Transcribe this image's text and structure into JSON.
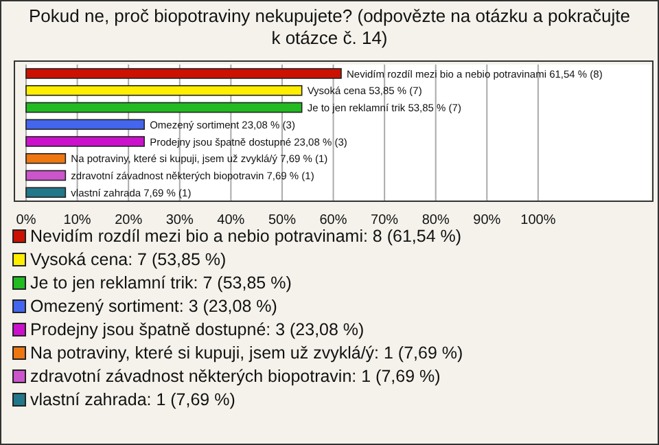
{
  "chart_data": {
    "type": "bar",
    "orientation": "horizontal",
    "stacked": true,
    "title": "Pokud ne, proč biopotraviny nekupujete? (odpovězte na otázku a pokračujte k otázce č. 14)",
    "categories": [
      null,
      null,
      null,
      null,
      null,
      null,
      null,
      null
    ],
    "series": [
      {
        "name": "Nevidím rozdíl mezi bio a nebio potravinami: 8 (61,54 %)",
        "color": "#cc1100",
        "values": [
          61.54,
          null,
          null,
          null,
          null,
          null,
          null,
          null
        ],
        "value_labels": [
          "Nevidím rozdíl mezi bio a nebio potravinami 61,54 % (8)",
          null,
          null,
          null,
          null,
          null,
          null,
          null
        ]
      },
      {
        "name": "Vysoká cena: 7 (53,85 %)",
        "color": "#ffee00",
        "values": [
          null,
          53.85,
          null,
          null,
          null,
          null,
          null,
          null
        ],
        "value_labels": [
          null,
          "Vysoká cena 53,85 % (7)",
          null,
          null,
          null,
          null,
          null,
          null
        ]
      },
      {
        "name": "Je to jen reklamní trik: 7 (53,85 %)",
        "color": "#22bb22",
        "values": [
          null,
          null,
          53.85,
          null,
          null,
          null,
          null,
          null
        ],
        "value_labels": [
          null,
          null,
          "Je to jen reklamní trik 53,85 % (7)",
          null,
          null,
          null,
          null,
          null
        ]
      },
      {
        "name": "Omezený sortiment: 3 (23,08 %)",
        "color": "#4466ee",
        "values": [
          null,
          null,
          null,
          23.08,
          null,
          null,
          null,
          null
        ],
        "value_labels": [
          null,
          null,
          null,
          "Omezený sortiment 23,08 % (3)",
          null,
          null,
          null,
          null
        ]
      },
      {
        "name": "Prodejny jsou špatně dostupné: 3 (23,08 %)",
        "color": "#cc11cc",
        "values": [
          null,
          null,
          null,
          null,
          23.08,
          null,
          null,
          null
        ],
        "value_labels": [
          null,
          null,
          null,
          null,
          "Prodejny jsou špatně dostupné 23,08 % (3)",
          null,
          null,
          null
        ]
      },
      {
        "name": "Na potraviny, které si kupuji, jsem už zvyklá/ý: 1 (7,69 %)",
        "color": "#ee7711",
        "values": [
          null,
          null,
          null,
          null,
          null,
          7.69,
          null,
          null
        ],
        "value_labels": [
          null,
          null,
          null,
          null,
          null,
          "Na potraviny, které si kupuji, jsem už zvyklá/ý 7,69 % (1)",
          null,
          null
        ]
      },
      {
        "name": "zdravotní závadnost některých biopotravin: 1 (7,69 %)",
        "color": "#cc55cc",
        "values": [
          null,
          null,
          null,
          null,
          null,
          null,
          7.69,
          null
        ],
        "value_labels": [
          null,
          null,
          null,
          null,
          null,
          null,
          "zdravotní závadnost některých biopotravin 7,69 % (1)",
          null
        ]
      },
      {
        "name": "vlastní zahrada: 1 (7,69 %)",
        "color": "#227788",
        "values": [
          null,
          null,
          null,
          null,
          null,
          null,
          null,
          7.69
        ],
        "value_labels": [
          null,
          null,
          null,
          null,
          null,
          null,
          null,
          "vlastní zahrada 7,69 % (1)"
        ]
      }
    ],
    "xlim": [
      0,
      122
    ],
    "xticks": [
      {
        "value": 0,
        "label": "0%"
      },
      {
        "value": 10,
        "label": "10%"
      },
      {
        "value": 20,
        "label": "20%"
      },
      {
        "value": 30,
        "label": "30%"
      },
      {
        "value": 40,
        "label": "40%"
      },
      {
        "value": 50,
        "label": "50%"
      },
      {
        "value": 60,
        "label": "60%"
      },
      {
        "value": 70,
        "label": "70%"
      },
      {
        "value": 80,
        "label": "80%"
      },
      {
        "value": 90,
        "label": "90%"
      },
      {
        "value": 100,
        "label": "100%"
      }
    ],
    "grid": "x",
    "legend": "bottom",
    "tick_labels": "x"
  }
}
